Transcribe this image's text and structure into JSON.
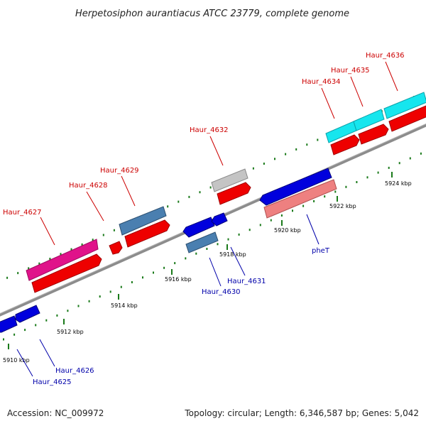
{
  "title": "Herpetosiphon aurantiacus ATCC 23779, complete genome",
  "footer": {
    "accession": "Accession: NC_009972",
    "summary": "Topology: circular; Length: 6,346,587 bp; Genes: 5,042"
  },
  "ticks": [
    "5910 kbp",
    "5912 kbp",
    "5914 kbp",
    "5916 kbp",
    "5918 kbp",
    "5920 kbp",
    "5922 kbp",
    "5924 kbp"
  ],
  "upper_labels": [
    "Haur_4627",
    "Haur_4628",
    "Haur_4629",
    "Haur_4632",
    "Haur_4634",
    "Haur_4635",
    "Haur_4636"
  ],
  "lower_labels": [
    "Haur_4625",
    "Haur_4626",
    "Haur_4630",
    "Haur_4631",
    "pheT"
  ],
  "colors": {
    "backbone": "#8c8c8c",
    "forward_cds": "#ee0000",
    "reverse_cds": "#0000dd",
    "hypothetical": "#e0128a",
    "steel": "#4a7fb0",
    "cyan": "#16e6ee",
    "grey": "#c4c4c4",
    "pink": "#ee8080",
    "tick": "#1a7a1a",
    "label_forward": "#cc0000",
    "label_reverse": "#0000aa"
  }
}
